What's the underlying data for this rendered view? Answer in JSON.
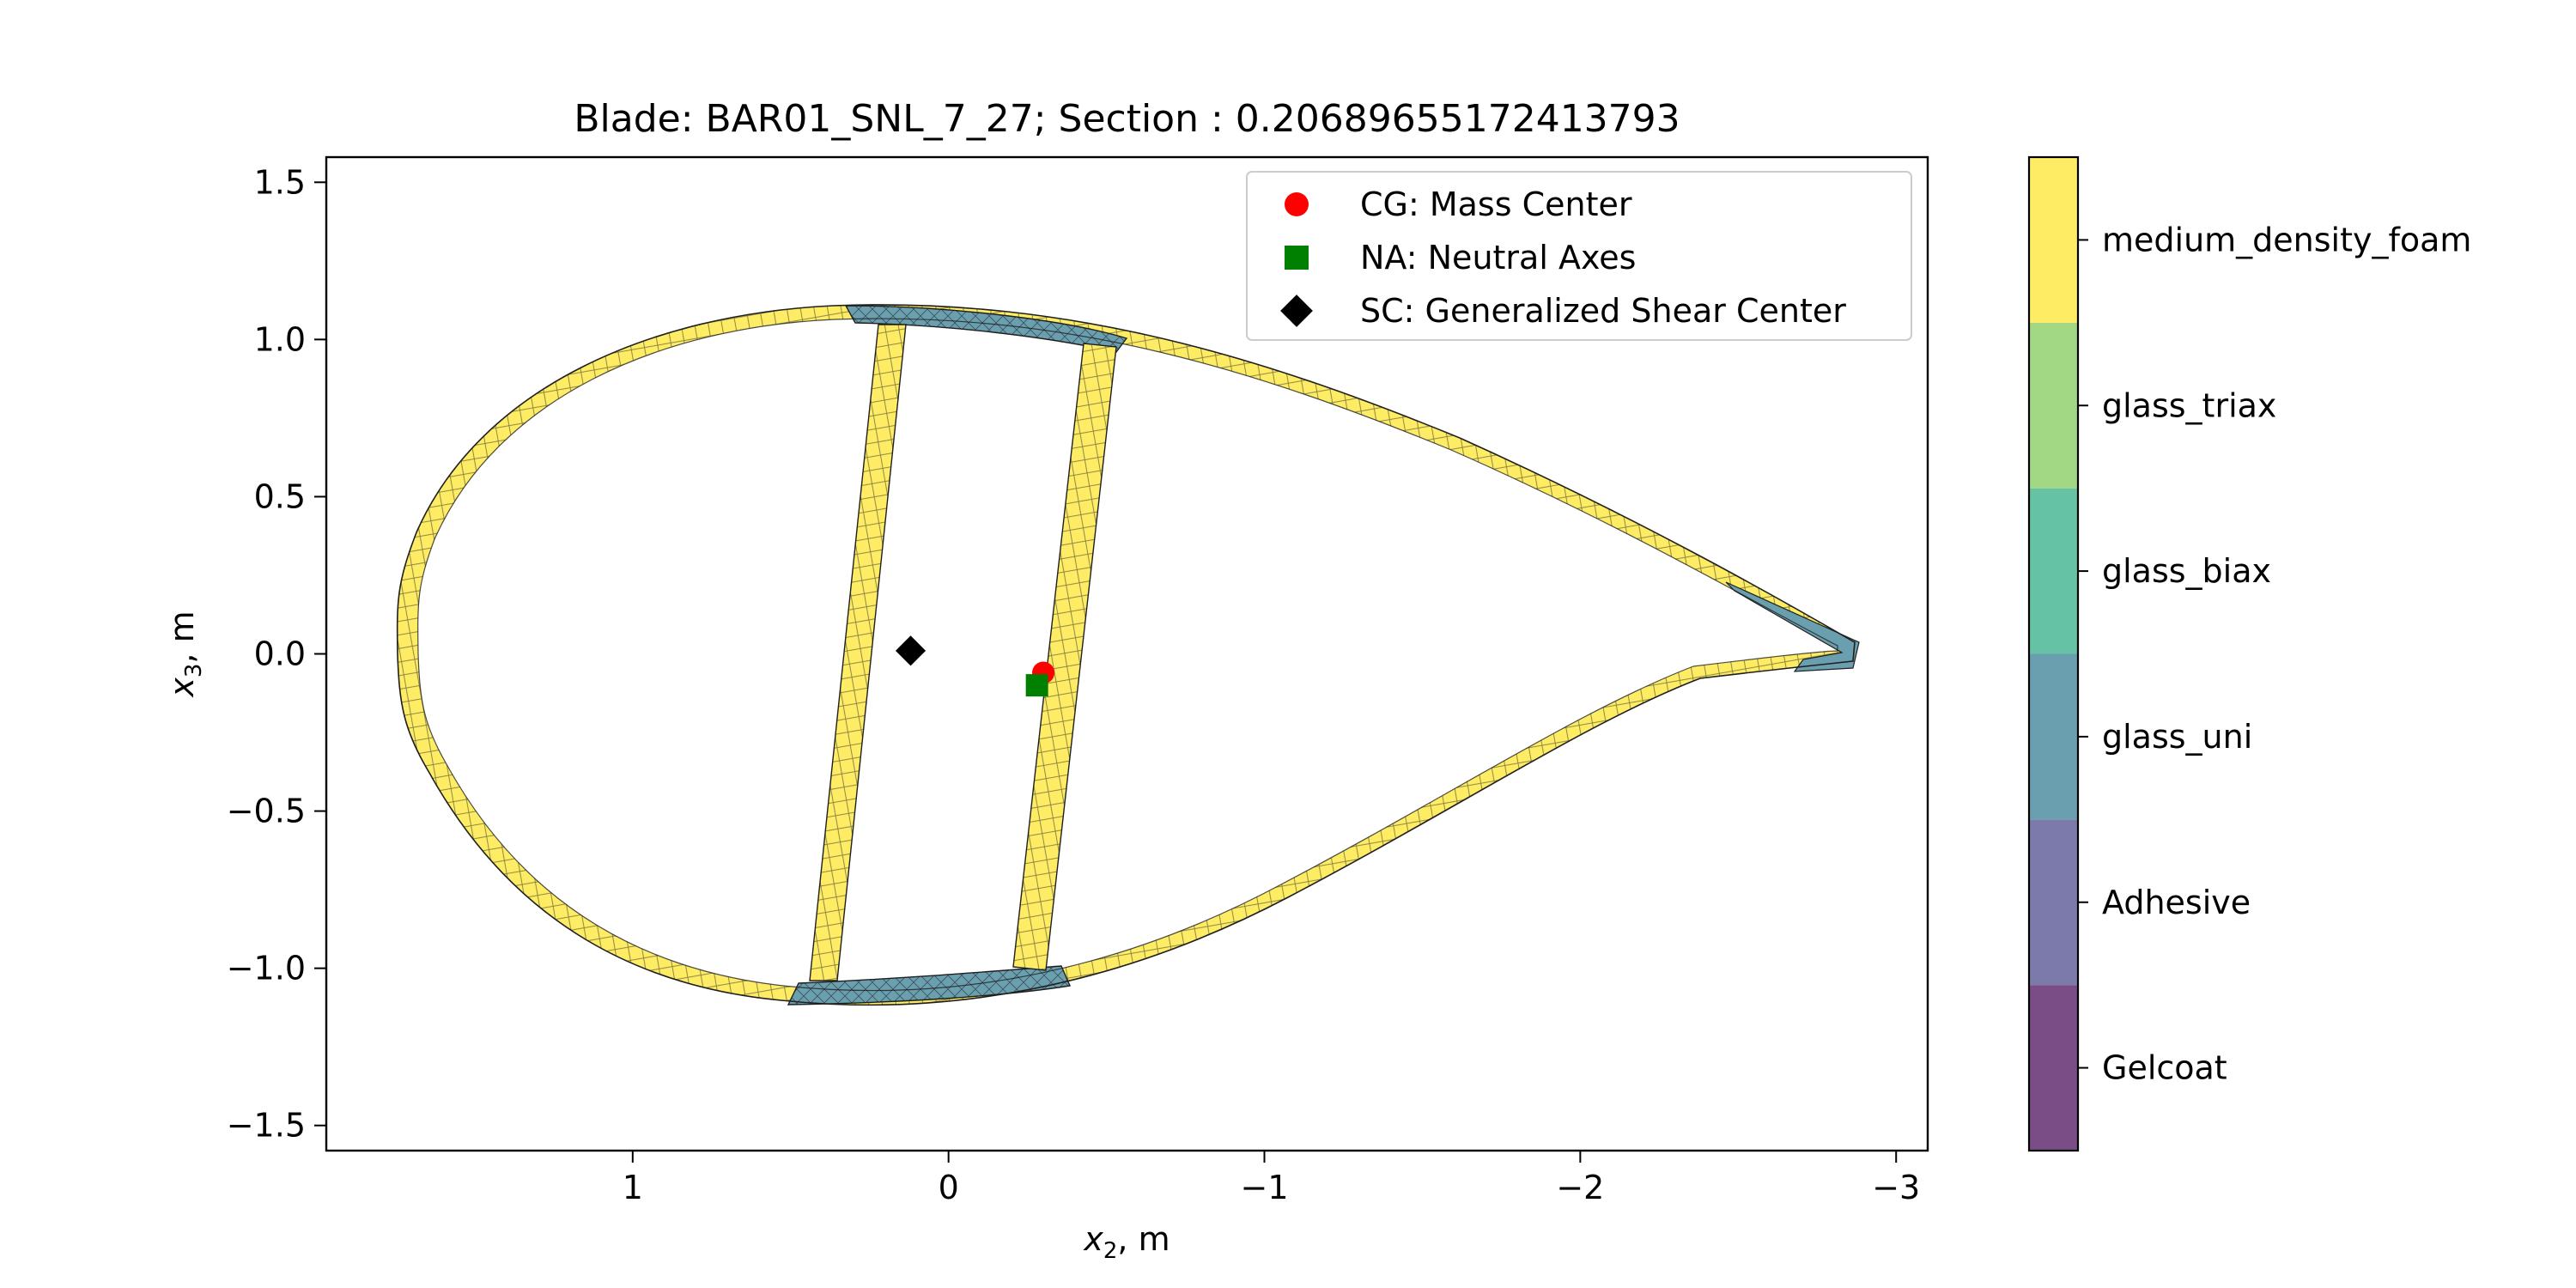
{
  "chart_data": {
    "type": "scatter",
    "title": "Blade: BAR01_SNL_7_27; Section : 0.20689655172413793",
    "xlabel": {
      "var": "x",
      "sub": "2",
      "unit": ", m"
    },
    "ylabel": {
      "var": "x",
      "sub": "3",
      "unit": ", m"
    },
    "xlim": [
      1.97,
      -3.1
    ],
    "ylim": [
      -1.58,
      1.58
    ],
    "x_ticks": [
      1,
      0,
      -1,
      -2,
      -3
    ],
    "x_tick_labels": [
      "1",
      "0",
      "−1",
      "−2",
      "−3"
    ],
    "y_ticks": [
      1.5,
      1.0,
      0.5,
      0.0,
      -0.5,
      -1.0,
      -1.5
    ],
    "y_tick_labels": [
      "1.5",
      "1.0",
      "0.5",
      "0.0",
      "−0.5",
      "−1.0",
      "−1.5"
    ],
    "grid": false,
    "legend_position": "top-right",
    "series": [
      {
        "name": "CG: Mass Center",
        "marker": "circle",
        "color": "#ff0000",
        "x": -0.3,
        "y": -0.06
      },
      {
        "name": "NA: Neutral Axes",
        "marker": "square",
        "color": "#008000",
        "x": -0.28,
        "y": -0.1
      },
      {
        "name": "SC: Generalized Shear Center",
        "marker": "diamond",
        "color": "#000000",
        "x": 0.12,
        "y": 0.01
      }
    ],
    "colorbar": {
      "position": "right",
      "materials": [
        "Gelcoat",
        "Adhesive",
        "glass_uni",
        "glass_biax",
        "glass_triax",
        "medium_density_foam"
      ],
      "colors": [
        "#7b4d87",
        "#7b7aaa",
        "#6a9fb0",
        "#66c2a5",
        "#a2d884",
        "#fdec64"
      ]
    },
    "section_colors": {
      "shell": "#fdec64",
      "spar_cap": "#6a9fb0",
      "edge": "#1f1f1f"
    }
  }
}
